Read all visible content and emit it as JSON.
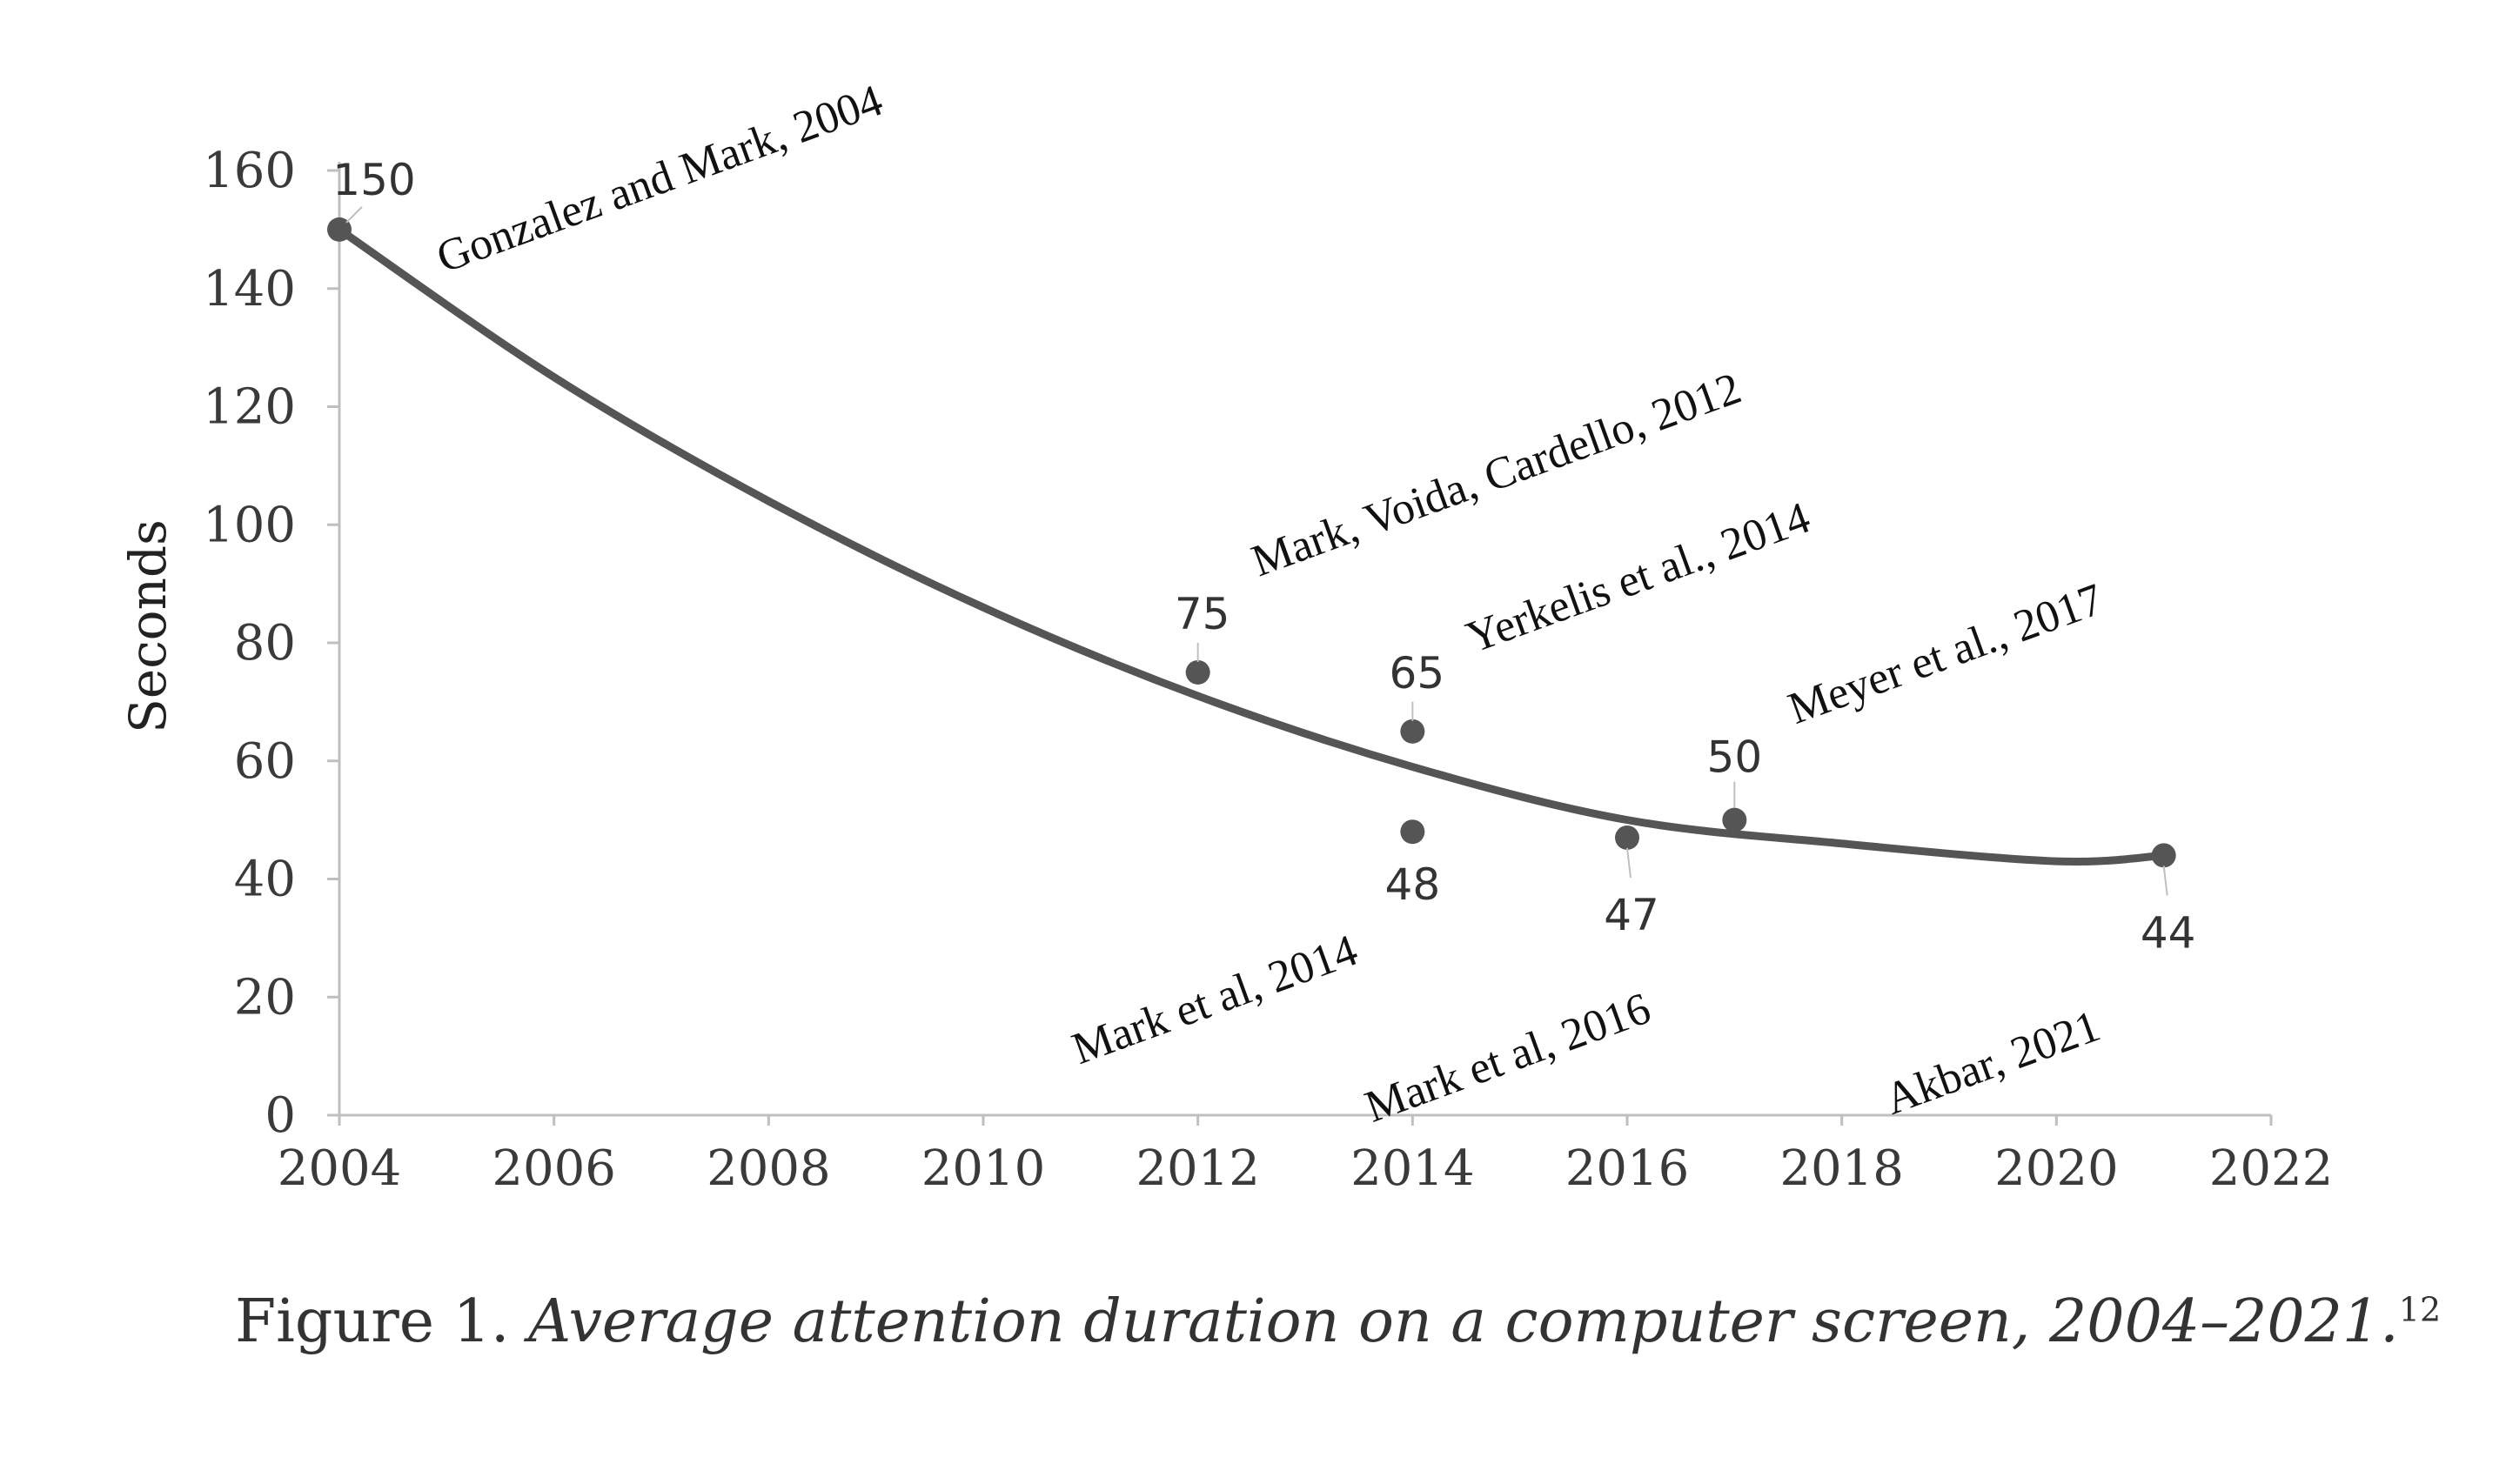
{
  "chart_data": {
    "type": "scatter",
    "ylabel": "Seconds",
    "xlim": [
      2004,
      2022
    ],
    "ylim": [
      0,
      160
    ],
    "xticks": [
      "2004",
      "2006",
      "2008",
      "2010",
      "2012",
      "2014",
      "2016",
      "2018",
      "2020",
      "2022"
    ],
    "yticks": [
      "0",
      "20",
      "40",
      "60",
      "80",
      "100",
      "120",
      "140",
      "160"
    ],
    "grid": false,
    "points": [
      {
        "x": 2004,
        "y": 150,
        "label": "150",
        "study": "Gonzalez and Mark, 2004"
      },
      {
        "x": 2012,
        "y": 75,
        "label": "75",
        "study": "Mark, Voida, Cardello, 2012"
      },
      {
        "x": 2014,
        "y": 65,
        "label": "65",
        "study": "Yerkelis et al., 2014"
      },
      {
        "x": 2014,
        "y": 48,
        "label": "48",
        "study": "Mark et al, 2014"
      },
      {
        "x": 2016,
        "y": 47,
        "label": "47",
        "study": "Mark et al, 2016"
      },
      {
        "x": 2017,
        "y": 50,
        "label": "50",
        "study": "Meyer et al., 2017"
      },
      {
        "x": 2021,
        "y": 44,
        "label": "44",
        "study": "Akbar, 2021"
      }
    ],
    "trendline": {
      "type": "polynomial",
      "x": [
        2004,
        2006,
        2008,
        2010,
        2012,
        2014,
        2016,
        2018,
        2020,
        2021
      ],
      "y": [
        150,
        125,
        104,
        86,
        71,
        59,
        50,
        46,
        43,
        44
      ]
    },
    "point_color": "#555555",
    "line_color": "#555555"
  },
  "caption": {
    "prefix": "Figure 1. ",
    "title": "Average attention duration on a computer screen, 2004–2021.",
    "note": "12"
  }
}
